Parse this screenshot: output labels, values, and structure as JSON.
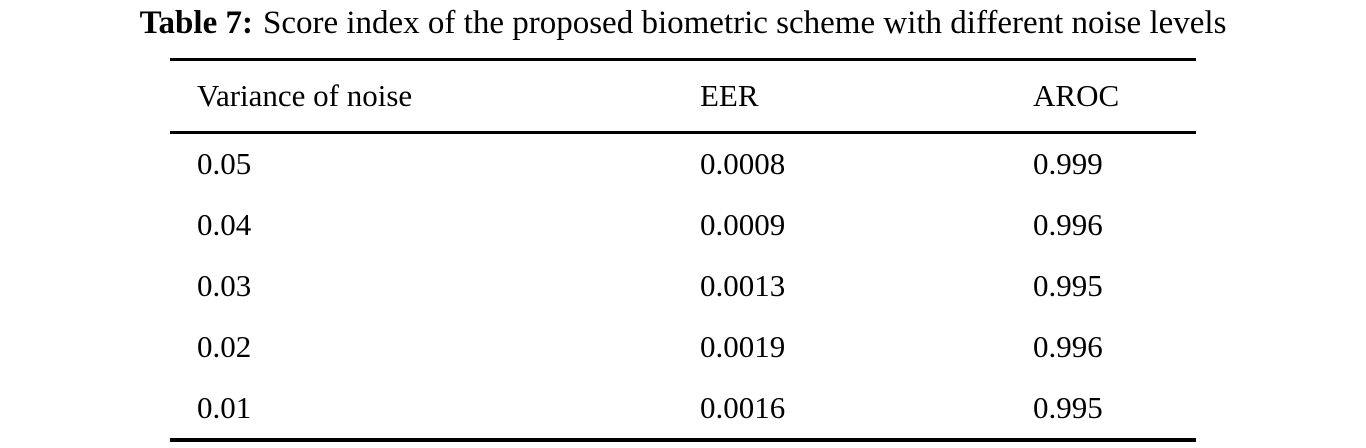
{
  "page": {
    "background": "#ffffff",
    "text_color": "#000000"
  },
  "caption": {
    "label": "Table 7:",
    "text": "Score index of the proposed biometric scheme with different noise levels"
  },
  "table": {
    "columns": [
      "Variance of noise",
      "EER",
      "AROC"
    ],
    "rows": [
      {
        "variance": "0.05",
        "eer": "0.0008",
        "aroc": "0.999"
      },
      {
        "variance": "0.04",
        "eer": "0.0009",
        "aroc": "0.996"
      },
      {
        "variance": "0.03",
        "eer": "0.0013",
        "aroc": "0.995"
      },
      {
        "variance": "0.02",
        "eer": "0.0019",
        "aroc": "0.996"
      },
      {
        "variance": "0.01",
        "eer": "0.0016",
        "aroc": "0.995"
      }
    ]
  },
  "chart_data": {
    "type": "table",
    "title": "Table 7: Score index of the proposed biometric scheme with different noise levels",
    "columns": [
      "Variance of noise",
      "EER",
      "AROC"
    ],
    "rows": [
      [
        0.05,
        0.0008,
        0.999
      ],
      [
        0.04,
        0.0009,
        0.996
      ],
      [
        0.03,
        0.0013,
        0.995
      ],
      [
        0.02,
        0.0019,
        0.996
      ],
      [
        0.01,
        0.0016,
        0.995
      ]
    ]
  }
}
